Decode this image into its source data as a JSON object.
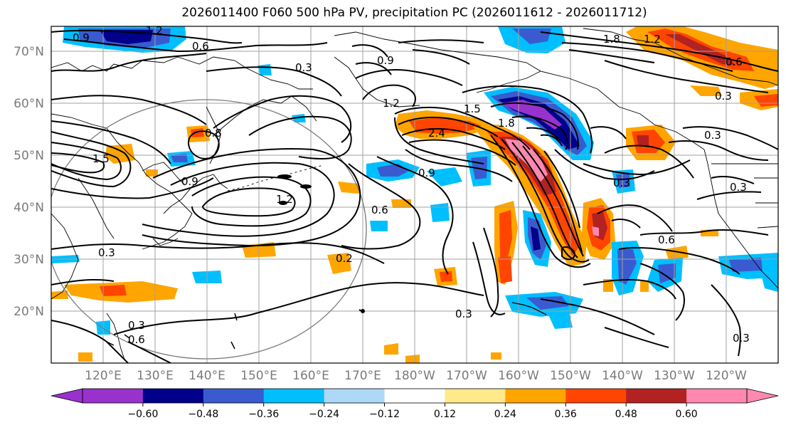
{
  "title": "2026011400 F060 500 hPa PV, precipitation PC (2026011612 - 2026011712)",
  "lat_labels": [
    "70°N",
    "60°N",
    "50°N",
    "40°N",
    "30°N",
    "20°N"
  ],
  "lon_labels": [
    "120°E",
    "130°E",
    "140°E",
    "150°E",
    "160°E",
    "170°E",
    "180°W",
    "170°W",
    "160°W",
    "150°W",
    "140°W",
    "130°W",
    "120°W"
  ],
  "colorbar": {
    "colors": [
      "#9932cc",
      "#00008b",
      "#3a5bd0",
      "#00bfff",
      "#add8f8",
      "#ffffff",
      "#ffe98a",
      "#ffa500",
      "#ff4500",
      "#b22222",
      "#ff88b0"
    ],
    "under_color": "#9932cc",
    "over_color": "#ff88b0",
    "tick_labels": [
      "−0.60",
      "−0.48",
      "−0.36",
      "−0.24",
      "−0.12",
      "0.12",
      "0.24",
      "0.36",
      "0.48",
      "0.60"
    ]
  },
  "contour_labels": [
    "1.2",
    "0.9",
    "0.6",
    "1.8",
    "1.2",
    "0.6",
    "0.3",
    "0.9",
    "1.2",
    "1.5",
    "2.4",
    "1.8",
    "1.5",
    "0.8",
    "0.9",
    "1.2",
    "0.6",
    "0.3",
    "0.3",
    "0.3",
    "0.6",
    "0.9",
    "0.3",
    "0.2",
    "0.3",
    "0.6",
    "0.3",
    "0.3",
    "0.3"
  ],
  "icons": {
    "coastline": "coastline-lines",
    "domain_circle": "circle-outline"
  }
}
